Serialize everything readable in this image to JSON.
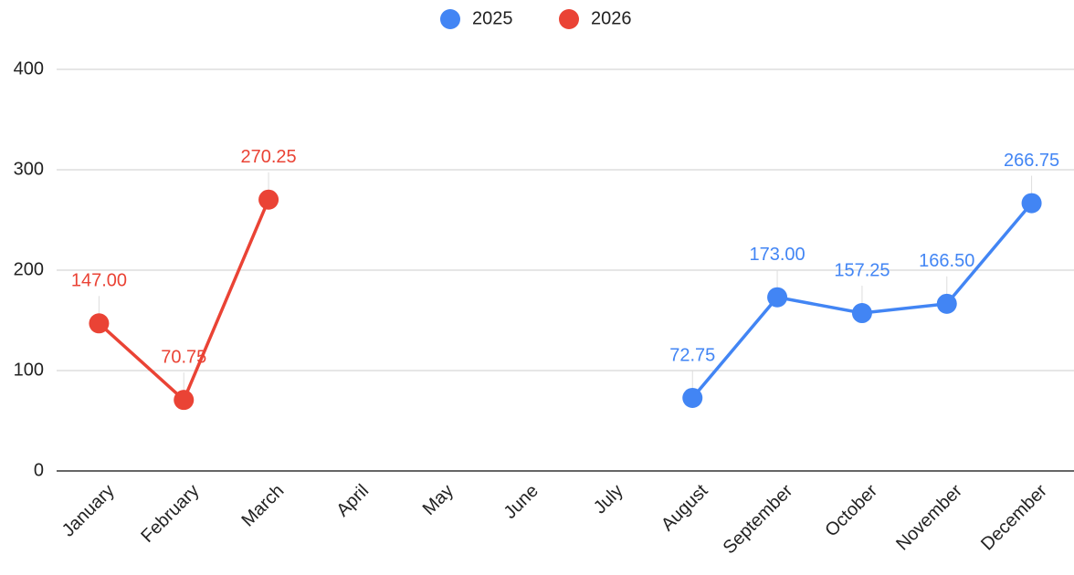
{
  "chart_data": {
    "type": "line",
    "categories": [
      "January",
      "February",
      "March",
      "April",
      "May",
      "June",
      "July",
      "August",
      "September",
      "October",
      "November",
      "December"
    ],
    "series": [
      {
        "name": "2025",
        "color": "#4285f4",
        "values": [
          null,
          null,
          null,
          null,
          null,
          null,
          null,
          72.75,
          173,
          157.25,
          166.5,
          266.75
        ],
        "value_labels": [
          null,
          null,
          null,
          null,
          null,
          null,
          null,
          "72.75",
          "173.00",
          "157.25",
          "166.50",
          "266.75"
        ]
      },
      {
        "name": "2026",
        "color": "#ea4335",
        "values": [
          147,
          70.75,
          270.25,
          null,
          null,
          null,
          null,
          null,
          null,
          null,
          null,
          null
        ],
        "value_labels": [
          "147.00",
          "70.75",
          "270.25",
          null,
          null,
          null,
          null,
          null,
          null,
          null,
          null,
          null
        ]
      }
    ],
    "ylim": [
      0,
      400
    ],
    "yticks": [
      0,
      100,
      200,
      300,
      400
    ],
    "grid": true,
    "legend": "top"
  }
}
